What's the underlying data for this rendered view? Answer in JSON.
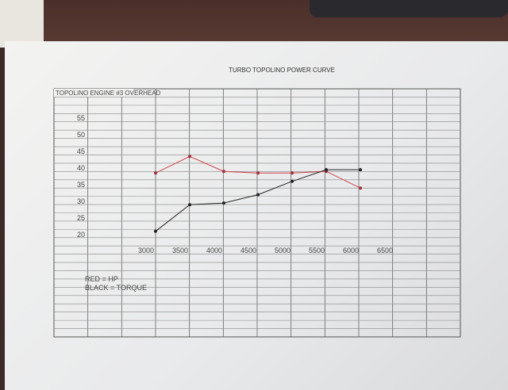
{
  "chart_data": {
    "type": "line",
    "title": "TURBO TOPOLINO POWER CURVE",
    "subtitle": "TOPOLINO ENGINE #3 OVERHEAD",
    "x_ticks": [
      "3000",
      "3500",
      "4000",
      "4500",
      "5000",
      "5500",
      "6000",
      "6500"
    ],
    "y_ticks": [
      "55",
      "50",
      "45",
      "40",
      "35",
      "30",
      "25",
      "20"
    ],
    "x": [
      3000,
      3500,
      4000,
      4500,
      5000,
      5500,
      6000
    ],
    "series": [
      {
        "color": "#d0404a",
        "values": [
          38.5,
          43.5,
          39,
          38.5,
          38.5,
          39,
          34
        ]
      },
      {
        "color": "#222222",
        "values": [
          21,
          29,
          29.5,
          32,
          36,
          39.5,
          39.5
        ]
      }
    ],
    "legend": [
      "RED = HP",
      "BLACK = TORQUE"
    ],
    "grid": true
  }
}
